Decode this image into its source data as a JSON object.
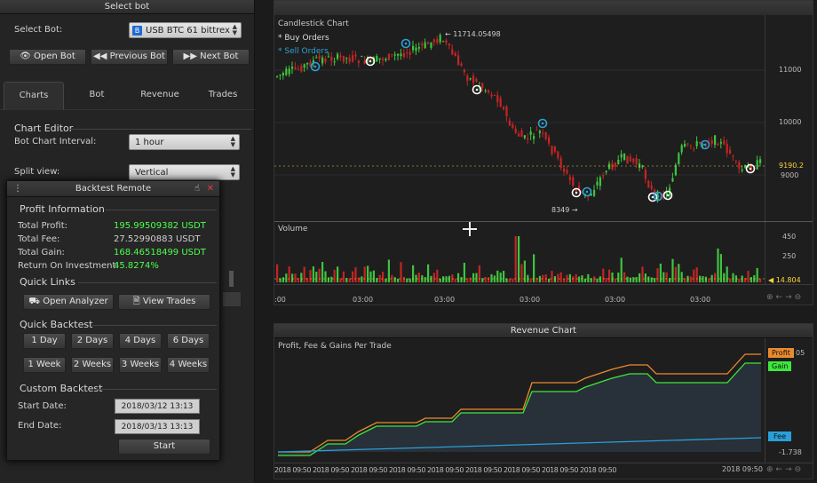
{
  "select_bot_panel": {
    "title": "Select bot",
    "select_label": "Select Bot:",
    "selected_bot": "USB BTC 61 bittrex",
    "open_bot": "Open Bot",
    "previous_bot": "Previous Bot",
    "next_bot": "Next Bot"
  },
  "tabs": [
    "Charts",
    "Bot",
    "Revenue",
    "Trades"
  ],
  "chart_editor": {
    "title": "Chart Editor",
    "interval_label": "Bot Chart Interval:",
    "interval_value": "1 hour",
    "split_label": "Split view:",
    "split_value": "Vertical"
  },
  "backtest": {
    "title": "Backtest Remote",
    "profit_info_title": "Profit Information",
    "rows": [
      {
        "label": "Total Profit:",
        "value": "195.99509382 USDT",
        "highlight": true
      },
      {
        "label": "Total Fee:",
        "value": "27.52990883 USDT",
        "highlight": false
      },
      {
        "label": "Total Gain:",
        "value": "168.46518499 USDT",
        "highlight": true
      },
      {
        "label": "Return On Investment:",
        "value": "45.8274%",
        "highlight": true
      }
    ],
    "quick_links_title": "Quick Links",
    "open_analyzer": "Open Analyzer",
    "view_trades": "View Trades",
    "quick_backtest_title": "Quick Backtest",
    "quick_buttons": [
      "1 Day",
      "2 Days",
      "4 Days",
      "6 Days",
      "1 Week",
      "2 Weeks",
      "3 Weeks",
      "4 Weeks"
    ],
    "custom_title": "Custom Backtest",
    "start_label": "Start Date:",
    "start_value": "2018/03/12 13:13",
    "end_label": "End Date:",
    "end_value": "2018/03/13 13:13",
    "start_button": "Start"
  },
  "candle_chart": {
    "title": "Candlestick Chart",
    "legend_buy": "Buy Orders",
    "legend_sell": "Sell Orders",
    "high_label": "11714.05498",
    "low_label": "8349",
    "price_ticks": [
      "11000",
      "10000",
      "9000"
    ],
    "current_price": "9190.2",
    "volume_title": "Volume",
    "volume_ticks": [
      "450",
      "250"
    ],
    "volume_current": "14.804",
    "time_ticks": [
      ":00",
      "03:00",
      "03:00",
      "03:00",
      "03:00",
      "03:00",
      "03:00"
    ]
  },
  "revenue_chart": {
    "panel_title": "Revenue Chart",
    "title": "Profit, Fee & Gains Per Trade",
    "tag_profit": "Profit",
    "tag_gain": "Gain",
    "tag_fee": "Fee",
    "axis_top": "05",
    "axis_bottom": "-1.738",
    "time_tail": "2018 09:50"
  },
  "colors": {
    "bull": "#3ec43e",
    "bear": "#c42424",
    "buy": "#ffffff",
    "sell": "#29a3d6",
    "profit": "#e98a2f",
    "gain": "#3ee63e",
    "fee": "#2a9fd8"
  }
}
